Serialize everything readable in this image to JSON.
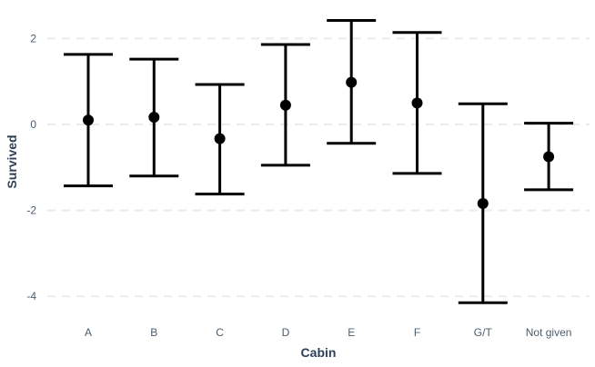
{
  "chart_data": {
    "type": "errorbar",
    "xlabel": "Cabin",
    "ylabel": "Survived",
    "categories": [
      "A",
      "B",
      "C",
      "D",
      "E",
      "F",
      "G/T",
      "Not given"
    ],
    "estimate": [
      0.1,
      0.17,
      -0.33,
      0.45,
      0.98,
      0.5,
      -1.84,
      -0.75
    ],
    "lower": [
      -1.43,
      -1.2,
      -1.62,
      -0.95,
      -0.44,
      -1.14,
      -4.15,
      -1.52
    ],
    "upper": [
      1.63,
      1.52,
      0.93,
      1.86,
      2.42,
      2.14,
      0.48,
      0.03
    ],
    "yticks": [
      -4,
      -2,
      0,
      2
    ],
    "ylim": [
      -4.35,
      2.6
    ],
    "grid": true,
    "legend": "none",
    "colors": {
      "marks": "#000000",
      "grid": "#ebebeb",
      "text": "#4d5d6e",
      "title": "#2e4057"
    }
  }
}
